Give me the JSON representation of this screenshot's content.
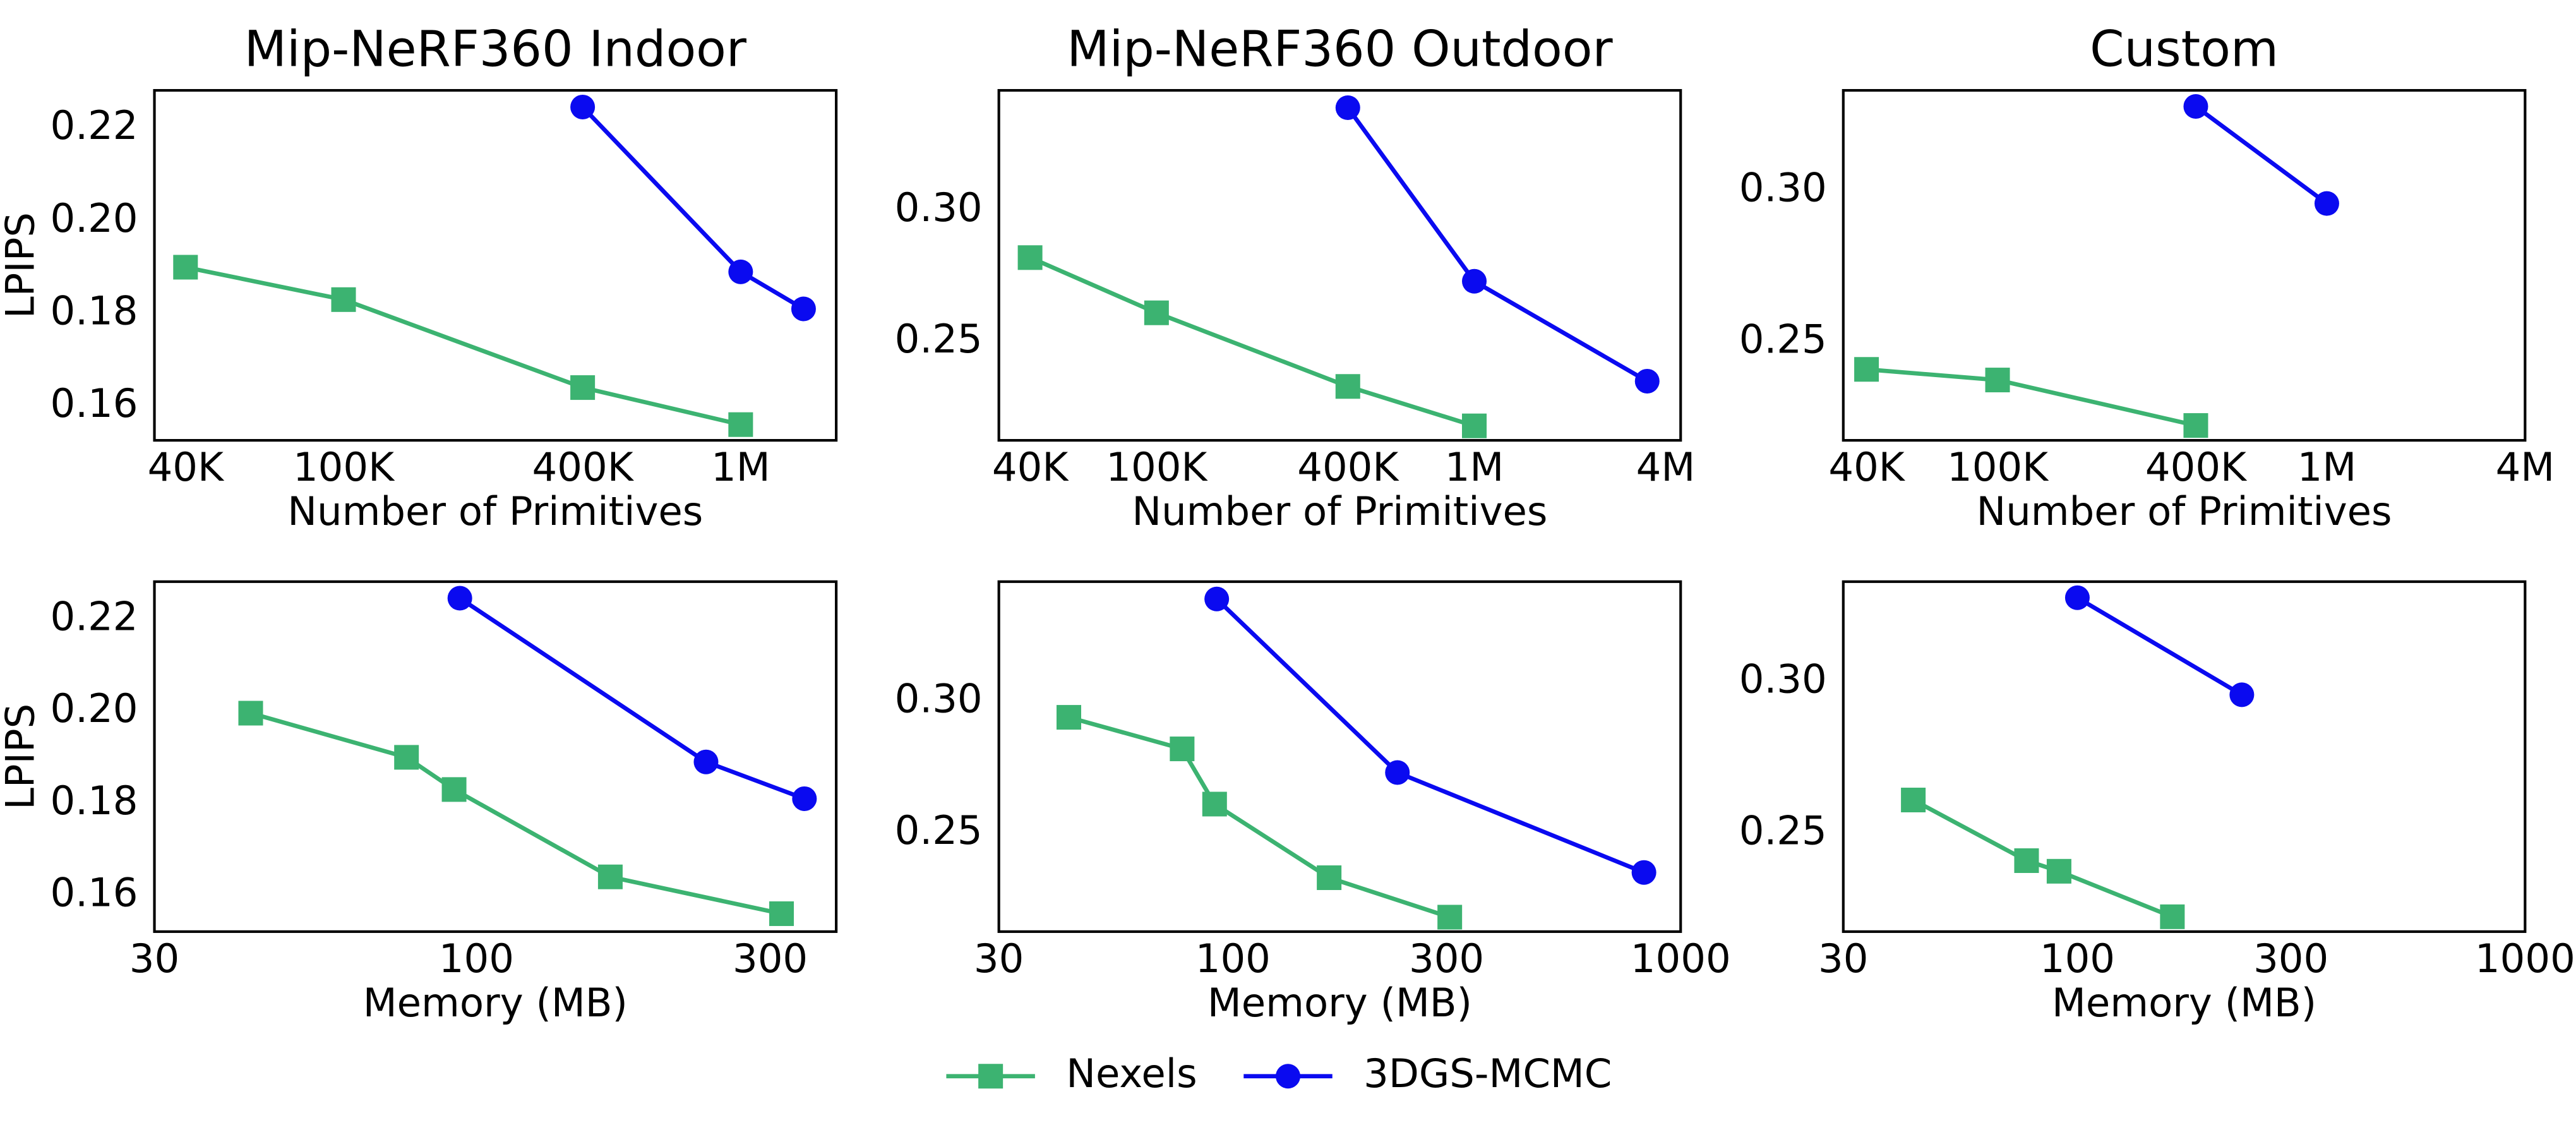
{
  "chart_data": [
    {
      "type": "line",
      "title": "Mip-NeRF360 Indoor",
      "xlabel": "Number of Primitives",
      "ylabel": "LPIPS",
      "xscale": "log",
      "xlim": [
        33400,
        1740000
      ],
      "ylim": [
        0.1526,
        0.2282
      ],
      "xticks": [
        {
          "value": 40000,
          "label": "40K"
        },
        {
          "value": 100000,
          "label": "100K"
        },
        {
          "value": 400000,
          "label": "400K"
        },
        {
          "value": 1000000,
          "label": "1M"
        }
      ],
      "yticks": [
        0.16,
        0.18,
        {
          "value": 0.2,
          "label": "0.20"
        },
        0.22
      ],
      "series": [
        {
          "name": "Nexels",
          "color": "#3cb371",
          "marker": "square",
          "x": [
            40000,
            100000,
            400000,
            1000000
          ],
          "values": [
            0.19,
            0.183,
            0.164,
            0.156
          ]
        },
        {
          "name": "3DGS-MCMC",
          "color": "#0a0af0",
          "marker": "circle",
          "x": [
            400000,
            1000000,
            1440000
          ],
          "values": [
            0.2246,
            0.189,
            0.181
          ]
        }
      ]
    },
    {
      "type": "line",
      "title": "Mip-NeRF360 Outdoor",
      "xlabel": "Number of Primitives",
      "xscale": "log",
      "xlim": [
        31900,
        4460000
      ],
      "ylim": [
        0.2125,
        0.3456
      ],
      "xticks": [
        {
          "value": 40000,
          "label": "40K"
        },
        {
          "value": 100000,
          "label": "100K"
        },
        {
          "value": 400000,
          "label": "400K"
        },
        {
          "value": 1000000,
          "label": "1M"
        },
        {
          "value": 4000000,
          "label": "4M"
        }
      ],
      "yticks": [
        0.25,
        {
          "value": 0.3,
          "label": "0.30"
        }
      ],
      "series": [
        {
          "name": "Nexels",
          "color": "#3cb371",
          "marker": "square",
          "x": [
            40000,
            100000,
            400000,
            1000000
          ],
          "values": [
            0.282,
            0.261,
            0.233,
            0.218
          ]
        },
        {
          "name": "3DGS-MCMC",
          "color": "#0a0af0",
          "marker": "circle",
          "x": [
            400000,
            1000000,
            3500000
          ],
          "values": [
            0.339,
            0.273,
            0.235
          ]
        }
      ]
    },
    {
      "type": "line",
      "title": "Custom",
      "xlabel": "Number of Primitives",
      "xscale": "log",
      "xlim": [
        34000,
        4000000
      ],
      "ylim": [
        0.2176,
        0.333
      ],
      "xticks": [
        {
          "value": 40000,
          "label": "40K"
        },
        {
          "value": 100000,
          "label": "100K"
        },
        {
          "value": 400000,
          "label": "400K"
        },
        {
          "value": 1000000,
          "label": "1M"
        },
        {
          "value": 4000000,
          "label": "4M"
        }
      ],
      "yticks": [
        0.25,
        {
          "value": 0.3,
          "label": "0.30"
        }
      ],
      "series": [
        {
          "name": "Nexels",
          "color": "#3cb371",
          "marker": "square",
          "x": [
            40000,
            100000,
            400000
          ],
          "values": [
            0.241,
            0.2375,
            0.2225
          ]
        },
        {
          "name": "3DGS-MCMC",
          "color": "#0a0af0",
          "marker": "circle",
          "x": [
            400000,
            1000000
          ],
          "values": [
            0.3277,
            0.2957
          ]
        }
      ]
    },
    {
      "type": "line",
      "xlabel": "Memory (MB)",
      "ylabel": "LPIPS",
      "xscale": "log",
      "xlim": [
        30,
        384
      ],
      "ylim": [
        0.1521,
        0.2282
      ],
      "xticks": [
        30,
        100,
        300
      ],
      "yticks": [
        0.16,
        0.18,
        {
          "value": 0.2,
          "label": "0.20"
        },
        0.22
      ],
      "series": [
        {
          "name": "Nexels",
          "color": "#3cb371",
          "marker": "square",
          "x": [
            43,
            77,
            92,
            165,
            313
          ],
          "values": [
            0.1996,
            0.19,
            0.183,
            0.164,
            0.156
          ]
        },
        {
          "name": "3DGS-MCMC",
          "color": "#0a0af0",
          "marker": "circle",
          "x": [
            94,
            236,
            341
          ],
          "values": [
            0.2246,
            0.189,
            0.181
          ]
        }
      ]
    },
    {
      "type": "line",
      "xlabel": "Memory (MB)",
      "xscale": "log",
      "xlim": [
        30,
        1000
      ],
      "ylim": [
        0.2125,
        0.3456
      ],
      "xticks": [
        30,
        100,
        300,
        1000
      ],
      "yticks": [
        0.25,
        {
          "value": 0.3,
          "label": "0.30"
        }
      ],
      "series": [
        {
          "name": "Nexels",
          "color": "#3cb371",
          "marker": "square",
          "x": [
            43,
            77,
            91,
            164,
            305
          ],
          "values": [
            0.294,
            0.282,
            0.261,
            0.233,
            0.218
          ]
        },
        {
          "name": "3DGS-MCMC",
          "color": "#0a0af0",
          "marker": "circle",
          "x": [
            92,
            233,
            828
          ],
          "values": [
            0.339,
            0.273,
            0.235
          ]
        }
      ]
    },
    {
      "type": "line",
      "xlabel": "Memory (MB)",
      "xscale": "log",
      "xlim": [
        30,
        1000
      ],
      "ylim": [
        0.2176,
        0.333
      ],
      "xticks": [
        30,
        100,
        300,
        1000
      ],
      "yticks": [
        0.25,
        {
          "value": 0.3,
          "label": "0.30"
        }
      ],
      "series": [
        {
          "name": "Nexels",
          "color": "#3cb371",
          "marker": "square",
          "x": [
            43,
            77,
            91,
            163
          ],
          "values": [
            0.261,
            0.241,
            0.2375,
            0.2225
          ]
        },
        {
          "name": "3DGS-MCMC",
          "color": "#0a0af0",
          "marker": "circle",
          "x": [
            100,
            233
          ],
          "values": [
            0.3277,
            0.2957
          ]
        }
      ]
    }
  ]
}
